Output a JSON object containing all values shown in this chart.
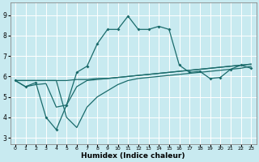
{
  "title": "",
  "xlabel": "Humidex (Indice chaleur)",
  "ylabel": "",
  "bg_color": "#c8eaf0",
  "grid_color": "#ffffff",
  "line_color": "#1a6b6b",
  "x_ticks": [
    0,
    1,
    2,
    3,
    4,
    5,
    6,
    7,
    8,
    9,
    10,
    11,
    12,
    13,
    14,
    15,
    16,
    17,
    18,
    19,
    20,
    21,
    22,
    23
  ],
  "y_ticks": [
    3,
    4,
    5,
    6,
    7,
    8,
    9
  ],
  "ylim": [
    2.7,
    9.6
  ],
  "xlim": [
    -0.5,
    23.5
  ],
  "line1_x": [
    0,
    1,
    2,
    3,
    4,
    5,
    6,
    7,
    8,
    9,
    10,
    11,
    12,
    13,
    14,
    15,
    16,
    17,
    18,
    19,
    20,
    21,
    22,
    23
  ],
  "line1_y": [
    5.8,
    5.5,
    5.7,
    4.0,
    3.4,
    4.6,
    6.2,
    6.5,
    7.6,
    8.3,
    8.3,
    8.95,
    8.3,
    8.3,
    8.45,
    8.3,
    6.55,
    6.2,
    6.25,
    5.9,
    5.95,
    6.35,
    6.55,
    6.4
  ],
  "line2_x": [
    0,
    1,
    2,
    3,
    4,
    5,
    6,
    7,
    8,
    9,
    10,
    11,
    12,
    13,
    14,
    15,
    16,
    17,
    18,
    19,
    20,
    21,
    22,
    23
  ],
  "line2_y": [
    5.8,
    5.8,
    5.8,
    5.8,
    5.8,
    5.8,
    5.85,
    5.85,
    5.9,
    5.9,
    5.95,
    6.0,
    6.05,
    6.1,
    6.15,
    6.2,
    6.25,
    6.3,
    6.35,
    6.4,
    6.45,
    6.5,
    6.55,
    6.6
  ],
  "line3_x": [
    0,
    1,
    2,
    3,
    4,
    5,
    6,
    7,
    8,
    9,
    10,
    11,
    12,
    13,
    14,
    15,
    16,
    17,
    18,
    19,
    20,
    21,
    22,
    23
  ],
  "line3_y": [
    5.8,
    5.5,
    5.6,
    5.65,
    4.5,
    4.6,
    5.5,
    5.8,
    5.85,
    5.9,
    5.95,
    6.0,
    6.05,
    6.1,
    6.15,
    6.2,
    6.25,
    6.3,
    6.35,
    6.4,
    6.45,
    6.5,
    6.55,
    6.6
  ],
  "line4_x": [
    0,
    1,
    2,
    3,
    4,
    5,
    6,
    7,
    8,
    9,
    10,
    11,
    12,
    13,
    14,
    15,
    16,
    17,
    18,
    19,
    20,
    21,
    22,
    23
  ],
  "line4_y": [
    5.8,
    5.8,
    5.8,
    5.8,
    5.8,
    4.0,
    3.5,
    4.5,
    5.0,
    5.3,
    5.6,
    5.8,
    5.9,
    5.95,
    6.0,
    6.05,
    6.1,
    6.15,
    6.2,
    6.25,
    6.3,
    6.35,
    6.4,
    6.5
  ]
}
